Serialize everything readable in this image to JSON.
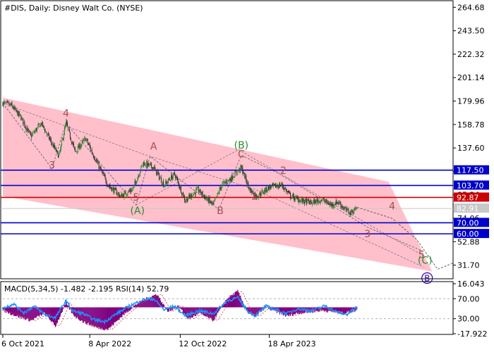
{
  "chart_data": {
    "type": "line",
    "title": "#DIS, Daily:  Disney Walt Co. (NYSE)",
    "price_axis_ticks": [
      "264.68",
      "243.50",
      "222.32",
      "201.14",
      "179.96",
      "158.78",
      "137.60",
      "116.42",
      "95.24",
      "74.06",
      "52.88",
      "31.70"
    ],
    "ylim": [
      20,
      270
    ],
    "x_tick_labels": [
      {
        "label": "6 Oct 2021",
        "i": 0
      },
      {
        "label": "8 Apr 2022",
        "i": 124
      },
      {
        "label": "12 Oct 2022",
        "i": 253
      },
      {
        "label": "18 Apr 2023",
        "i": 380
      }
    ],
    "n_bars": 505,
    "current_price": {
      "value": 82.91,
      "label": "82.91",
      "color": "#c8c8c8"
    },
    "levels": [
      {
        "value": 117.5,
        "label": "117.50",
        "color": "#0000cc"
      },
      {
        "value": 103.7,
        "label": "103.70",
        "color": "#0000cc"
      },
      {
        "value": 92.87,
        "label": "92.87",
        "color": "#cc0000"
      },
      {
        "value": 70.0,
        "label": "70.00",
        "color": "#0000cc"
      },
      {
        "value": 60.0,
        "label": "60.00",
        "color": "#0000cc"
      }
    ],
    "price_path": [
      {
        "i": 0,
        "v": 178
      },
      {
        "i": 12,
        "v": 176
      },
      {
        "i": 26,
        "v": 165
      },
      {
        "i": 40,
        "v": 148
      },
      {
        "i": 55,
        "v": 160
      },
      {
        "i": 68,
        "v": 144
      },
      {
        "i": 80,
        "v": 130
      },
      {
        "i": 90,
        "v": 160
      },
      {
        "i": 103,
        "v": 134
      },
      {
        "i": 118,
        "v": 146
      },
      {
        "i": 136,
        "v": 122
      },
      {
        "i": 150,
        "v": 104
      },
      {
        "i": 168,
        "v": 94
      },
      {
        "i": 185,
        "v": 100
      },
      {
        "i": 200,
        "v": 124
      },
      {
        "i": 215,
        "v": 120
      },
      {
        "i": 230,
        "v": 104
      },
      {
        "i": 245,
        "v": 114
      },
      {
        "i": 260,
        "v": 90
      },
      {
        "i": 278,
        "v": 100
      },
      {
        "i": 290,
        "v": 92
      },
      {
        "i": 300,
        "v": 86
      },
      {
        "i": 312,
        "v": 104
      },
      {
        "i": 325,
        "v": 110
      },
      {
        "i": 340,
        "v": 120
      },
      {
        "i": 352,
        "v": 100
      },
      {
        "i": 362,
        "v": 94
      },
      {
        "i": 380,
        "v": 102
      },
      {
        "i": 398,
        "v": 104
      },
      {
        "i": 410,
        "v": 94
      },
      {
        "i": 425,
        "v": 90
      },
      {
        "i": 440,
        "v": 88
      },
      {
        "i": 455,
        "v": 91
      },
      {
        "i": 468,
        "v": 86
      },
      {
        "i": 478,
        "v": 89
      },
      {
        "i": 488,
        "v": 82
      },
      {
        "i": 496,
        "v": 79
      },
      {
        "i": 505,
        "v": 84
      }
    ],
    "channel": [
      {
        "i": 0,
        "v": 183
      },
      {
        "i": 550,
        "v": 107
      },
      {
        "i": 612,
        "v": 26
      },
      {
        "i": 0,
        "v": 94
      }
    ],
    "projection": [
      {
        "i": 505,
        "v": 84
      },
      {
        "i": 555,
        "v": 74
      },
      {
        "i": 590,
        "v": 55
      },
      {
        "i": 620,
        "v": 28
      },
      {
        "i": 660,
        "v": 38
      }
    ],
    "wave_lines": [
      [
        {
          "i": 0,
          "v": 178
        },
        {
          "i": 70,
          "v": 119
        },
        {
          "i": 90,
          "v": 160
        },
        {
          "i": 190,
          "v": 86
        },
        {
          "i": 210,
          "v": 130
        },
        {
          "i": 308,
          "v": 82
        },
        {
          "i": 340,
          "v": 131
        },
        {
          "i": 392,
          "v": 115
        },
        {
          "i": 520,
          "v": 66
        },
        {
          "i": 600,
          "v": 44
        }
      ],
      [
        {
          "i": 0,
          "v": 178
        },
        {
          "i": 200,
          "v": 132
        },
        {
          "i": 360,
          "v": 100
        },
        {
          "i": 600,
          "v": 30
        }
      ],
      [
        {
          "i": 190,
          "v": 86
        },
        {
          "i": 336,
          "v": 136
        },
        {
          "i": 600,
          "v": 40
        }
      ]
    ],
    "wave_labels": [
      {
        "text": "3",
        "i": 70,
        "v": 119,
        "color": "#a05050"
      },
      {
        "text": "4",
        "i": 90,
        "v": 166,
        "color": "#a05050"
      },
      {
        "text": "5",
        "i": 190,
        "v": 90,
        "color": "#a05050"
      },
      {
        "text": "A",
        "i": 215,
        "v": 136,
        "color": "#a05050"
      },
      {
        "text": "B",
        "i": 310,
        "v": 78,
        "color": "#a05050"
      },
      {
        "text": "C",
        "i": 340,
        "v": 129,
        "color": "#a05050"
      },
      {
        "text": "1",
        "i": 358,
        "v": 91,
        "color": "#a05050"
      },
      {
        "text": "2",
        "i": 400,
        "v": 114,
        "color": "#a05050"
      },
      {
        "text": "3",
        "i": 520,
        "v": 57,
        "color": "#a05050"
      },
      {
        "text": "4",
        "i": 555,
        "v": 82,
        "color": "#a05050"
      },
      {
        "text": "5",
        "i": 597,
        "v": 38,
        "color": "#a05050"
      },
      {
        "text": "(A)",
        "i": 192,
        "v": 78,
        "color": "#2e8b2e"
      },
      {
        "text": "(B)",
        "i": 340,
        "v": 137,
        "color": "#2e8b2e"
      },
      {
        "text": "(C)",
        "i": 602,
        "v": 33,
        "color": "#2e8b2e"
      }
    ],
    "circle_label": {
      "text": "B",
      "i": 605,
      "v": 20,
      "color": "#330099"
    },
    "indicator": {
      "label": "MACD(5,34,5) -1.482 -2.195 RSI(14) 52.79",
      "axis_labels": [
        "16.043",
        "70.00",
        "30.00",
        "-17.922"
      ],
      "ylim": [
        -17.922,
        16.043
      ],
      "rsi_levels": [
        70,
        30
      ],
      "macd": [
        {
          "i": 0,
          "v": -2
        },
        {
          "i": 20,
          "v": -6
        },
        {
          "i": 40,
          "v": -9
        },
        {
          "i": 60,
          "v": -4
        },
        {
          "i": 75,
          "v": -13
        },
        {
          "i": 90,
          "v": 3
        },
        {
          "i": 100,
          "v": -5
        },
        {
          "i": 115,
          "v": -10
        },
        {
          "i": 135,
          "v": -14
        },
        {
          "i": 150,
          "v": -15
        },
        {
          "i": 170,
          "v": -6
        },
        {
          "i": 190,
          "v": 2
        },
        {
          "i": 205,
          "v": 6
        },
        {
          "i": 220,
          "v": 9
        },
        {
          "i": 235,
          "v": -3
        },
        {
          "i": 250,
          "v": 1
        },
        {
          "i": 265,
          "v": -8
        },
        {
          "i": 280,
          "v": -4
        },
        {
          "i": 300,
          "v": -9
        },
        {
          "i": 320,
          "v": 6
        },
        {
          "i": 335,
          "v": 11
        },
        {
          "i": 350,
          "v": -4
        },
        {
          "i": 360,
          "v": -6
        },
        {
          "i": 375,
          "v": 0
        },
        {
          "i": 390,
          "v": -3
        },
        {
          "i": 405,
          "v": -6
        },
        {
          "i": 420,
          "v": -4
        },
        {
          "i": 440,
          "v": -3
        },
        {
          "i": 455,
          "v": -2
        },
        {
          "i": 470,
          "v": -3
        },
        {
          "i": 485,
          "v": -4
        },
        {
          "i": 505,
          "v": -2
        }
      ],
      "rsi": [
        {
          "i": 0,
          "v": 50
        },
        {
          "i": 15,
          "v": 60
        },
        {
          "i": 30,
          "v": 42
        },
        {
          "i": 45,
          "v": 55
        },
        {
          "i": 60,
          "v": 38
        },
        {
          "i": 75,
          "v": 32
        },
        {
          "i": 90,
          "v": 66
        },
        {
          "i": 100,
          "v": 45
        },
        {
          "i": 115,
          "v": 40
        },
        {
          "i": 130,
          "v": 28
        },
        {
          "i": 145,
          "v": 24
        },
        {
          "i": 160,
          "v": 38
        },
        {
          "i": 180,
          "v": 55
        },
        {
          "i": 200,
          "v": 68
        },
        {
          "i": 215,
          "v": 70
        },
        {
          "i": 230,
          "v": 48
        },
        {
          "i": 245,
          "v": 55
        },
        {
          "i": 260,
          "v": 36
        },
        {
          "i": 280,
          "v": 46
        },
        {
          "i": 300,
          "v": 40
        },
        {
          "i": 320,
          "v": 66
        },
        {
          "i": 335,
          "v": 72
        },
        {
          "i": 350,
          "v": 44
        },
        {
          "i": 360,
          "v": 36
        },
        {
          "i": 375,
          "v": 55
        },
        {
          "i": 390,
          "v": 48
        },
        {
          "i": 405,
          "v": 40
        },
        {
          "i": 420,
          "v": 50
        },
        {
          "i": 440,
          "v": 46
        },
        {
          "i": 460,
          "v": 56
        },
        {
          "i": 475,
          "v": 44
        },
        {
          "i": 490,
          "v": 38
        },
        {
          "i": 505,
          "v": 53
        }
      ]
    }
  }
}
